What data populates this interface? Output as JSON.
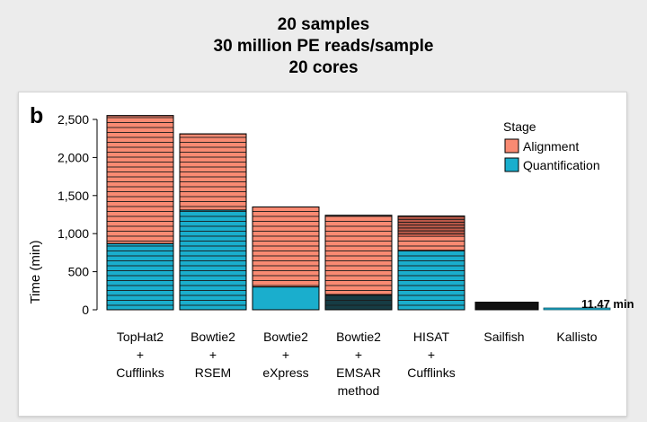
{
  "header": {
    "line1": "20 samples",
    "line2": "30 million PE reads/sample",
    "line3": "20 cores"
  },
  "chart_data": {
    "type": "bar",
    "stacked": true,
    "panel_label": "b",
    "ylabel": "Time (min)",
    "xlabel": "",
    "ylim": [
      0,
      2500
    ],
    "yticks": [
      0,
      500,
      1000,
      1500,
      2000,
      2500
    ],
    "ytick_labels": [
      "0",
      "500",
      "1,000",
      "1,500",
      "2,000",
      "2,500"
    ],
    "categories": [
      [
        "TopHat2",
        "+",
        "Cufflinks"
      ],
      [
        "Bowtie2",
        "+",
        "RSEM"
      ],
      [
        "Bowtie2",
        "+",
        "eXpress"
      ],
      [
        "Bowtie2",
        "+",
        "EMSAR",
        "method"
      ],
      [
        "HISAT",
        "+",
        "Cufflinks"
      ],
      [
        "Sailfish"
      ],
      [
        "Kallisto"
      ]
    ],
    "legend": {
      "title": "Stage",
      "position": "top-right",
      "entries": [
        {
          "label": "Alignment",
          "color": "#f98a72"
        },
        {
          "label": "Quantification",
          "color": "#1aaecd"
        }
      ]
    },
    "series": [
      {
        "name": "Quantification",
        "color": "#1aaecd",
        "values": [
          870,
          1310,
          300,
          200,
          780,
          100,
          11.47
        ]
      },
      {
        "name": "Alignment",
        "color": "#f98a72",
        "values": [
          1680,
          1000,
          1050,
          1040,
          450,
          0,
          0
        ]
      }
    ],
    "annotations": [
      {
        "text": "11.47 min",
        "category_index": 6
      }
    ]
  }
}
